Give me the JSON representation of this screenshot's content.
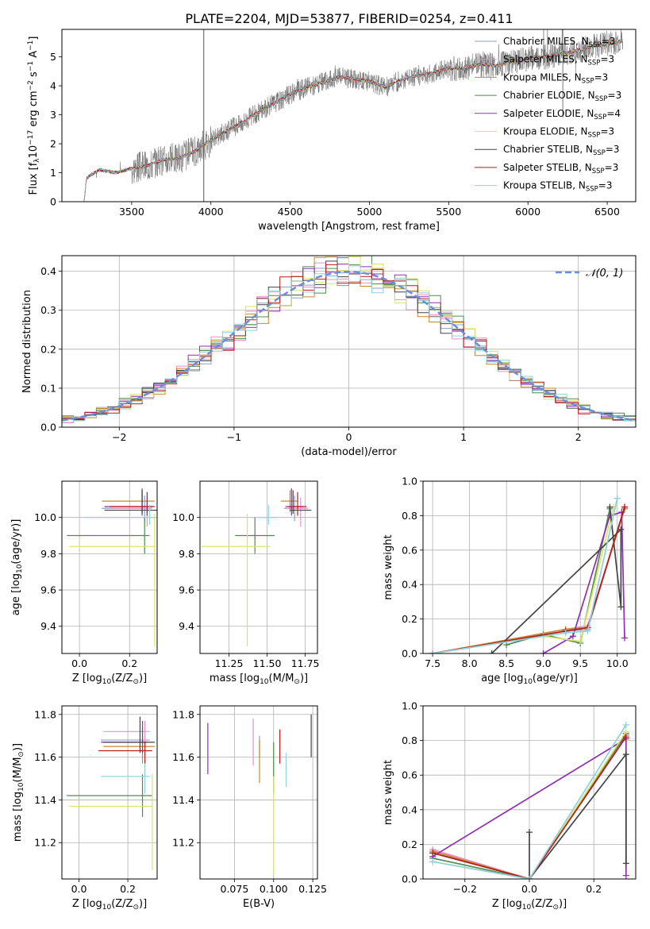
{
  "figure": {
    "title": "PLATE=2204, MJD=53877, FIBERID=0254, z=0.411"
  },
  "colors": {
    "Chabrier MILES": "#8c9ed0",
    "Salpeter MILES": "#e98fc8",
    "Kroupa MILES": "#c8882c",
    "Chabrier ELODIE": "#4f8a4f",
    "Salpeter ELODIE": "#8e2fb0",
    "Kroupa ELODIE": "#d9e36a",
    "Chabrier STELIB": "#444444",
    "Salpeter STELIB": "#b51c1c",
    "Kroupa STELIB": "#8fd0dc",
    "data": "#707070",
    "gaussian": "#6a8fd9"
  },
  "chart_data": [
    {
      "id": "spectrum",
      "type": "line",
      "xlabel": "wavelength [Angstrom, rest frame]",
      "ylabel": "Flux [f_λ 10^-17 erg cm^-2 s^-1 A^-1]",
      "xlim": [
        3060,
        6680
      ],
      "ylim": [
        0,
        5.95
      ],
      "xticks": [
        3500,
        4000,
        4500,
        5000,
        5500,
        6000,
        6500
      ],
      "yticks": [
        0,
        1,
        2,
        3,
        4,
        5
      ],
      "grid": false,
      "legend_position": "upper-right",
      "legend": [
        {
          "label": "Chabrier MILES",
          "sub": "SSP",
          "n": "3"
        },
        {
          "label": "Salpeter MILES",
          "sub": "SSP",
          "n": "3"
        },
        {
          "label": "Kroupa MILES",
          "sub": "SSP",
          "n": "3"
        },
        {
          "label": "Chabrier ELODIE",
          "sub": "SSP",
          "n": "3"
        },
        {
          "label": "Salpeter ELODIE",
          "sub": "SSP",
          "n": "4"
        },
        {
          "label": "Kroupa ELODIE",
          "sub": "SSP",
          "n": "3"
        },
        {
          "label": "Chabrier STELIB",
          "sub": "SSP",
          "n": "3"
        },
        {
          "label": "Salpeter STELIB",
          "sub": "SSP",
          "n": "3"
        },
        {
          "label": "Kroupa STELIB",
          "sub": "SSP",
          "n": "3"
        }
      ],
      "model_curve": {
        "x": [
          3200,
          3215,
          3250,
          3300,
          3400,
          3500,
          3600,
          3700,
          3800,
          3900,
          3950,
          4000,
          4100,
          4200,
          4300,
          4400,
          4500,
          4600,
          4700,
          4800,
          4900,
          5000,
          5100,
          5200,
          5300,
          5400,
          5500,
          5600,
          5700,
          5800,
          5900,
          6000,
          6100,
          6200,
          6300,
          6400,
          6500,
          6600
        ],
        "y": [
          0,
          0.8,
          0.95,
          1.1,
          1.0,
          1.15,
          1.25,
          1.45,
          1.5,
          1.75,
          1.95,
          2.1,
          2.45,
          2.75,
          3.1,
          3.4,
          3.7,
          3.95,
          4.1,
          4.3,
          4.25,
          4.15,
          3.95,
          4.2,
          4.35,
          4.45,
          4.6,
          4.6,
          4.75,
          4.7,
          4.85,
          4.95,
          5.0,
          5.1,
          5.2,
          5.35,
          5.45,
          5.55
        ]
      }
    },
    {
      "id": "residuals",
      "type": "histogram",
      "xlabel": "(data-model)/error",
      "ylabel": "Normed distribution",
      "xlim": [
        -2.5,
        2.5
      ],
      "ylim": [
        0,
        0.44
      ],
      "xticks": [
        -2,
        -1,
        0,
        1,
        2
      ],
      "yticks": [
        0.0,
        0.1,
        0.2,
        0.3,
        0.4
      ],
      "grid": true,
      "legend_position": "upper-right",
      "legend": [
        {
          "label": "𝒩(0, 1)"
        }
      ],
      "gaussian": {
        "mu": 0,
        "sigma": 1
      }
    },
    {
      "id": "age-vs-Z",
      "type": "scatter",
      "xlabel": "Z [log₁₀(Z/Z⊙)]",
      "ylabel": "age  [log₁₀(age/yr)]",
      "xlim": [
        -0.07,
        0.31
      ],
      "ylim": [
        9.25,
        10.2
      ],
      "xticks": [
        0.0,
        0.2
      ],
      "yticks": [
        9.4,
        9.6,
        9.8,
        10.0
      ],
      "grid": true,
      "points": [
        {
          "model": "Chabrier MILES",
          "x": 0.26,
          "xerr": [
            0.17,
            0.03
          ],
          "y": 10.05,
          "yerr": [
            0.07,
            0.07
          ]
        },
        {
          "model": "Salpeter MILES",
          "x": 0.27,
          "xerr": [
            0.13,
            0.02
          ],
          "y": 10.05,
          "yerr": [
            0.1,
            0.06
          ]
        },
        {
          "model": "Kroupa MILES",
          "x": 0.25,
          "xerr": [
            0.16,
            0.05
          ],
          "y": 10.09,
          "yerr": [
            0.06,
            0.06
          ]
        },
        {
          "model": "Chabrier ELODIE",
          "x": 0.26,
          "xerr": [
            0.31,
            0.02
          ],
          "y": 9.9,
          "yerr": [
            0.1,
            0.1
          ]
        },
        {
          "model": "Salpeter ELODIE",
          "x": 0.25,
          "xerr": [
            0.15,
            0.04
          ],
          "y": 10.06,
          "yerr": [
            0.05,
            0.1
          ]
        },
        {
          "model": "Kroupa ELODIE",
          "x": 0.3,
          "xerr": [
            0.34,
            0.0
          ],
          "y": 9.84,
          "yerr": [
            0.55,
            0.18
          ]
        },
        {
          "model": "Chabrier STELIB",
          "x": 0.25,
          "xerr": [
            0.15,
            0.06
          ],
          "y": 10.04,
          "yerr": [
            0.02,
            0.11
          ]
        },
        {
          "model": "Salpeter STELIB",
          "x": 0.27,
          "xerr": [
            0.15,
            0.03
          ],
          "y": 10.06,
          "yerr": [
            0.05,
            0.08
          ]
        },
        {
          "model": "Kroupa STELIB",
          "x": 0.28,
          "xerr": [
            0.26,
            0.02
          ],
          "y": 10.0,
          "yerr": [
            0.04,
            0.07
          ]
        }
      ]
    },
    {
      "id": "age-vs-mass",
      "type": "scatter",
      "xlabel": "mass [log₁₀(M/M⊙)]",
      "ylabel": "",
      "xlim": [
        11.06,
        11.83
      ],
      "ylim": [
        9.25,
        10.2
      ],
      "xticks": [
        11.25,
        11.5,
        11.75
      ],
      "yticks": [
        9.4,
        9.6,
        9.8,
        10.0
      ],
      "grid": true,
      "points": [
        {
          "model": "Chabrier MILES",
          "x": 11.68,
          "xerr": [
            0.07,
            0.07
          ],
          "y": 10.05,
          "yerr": [
            0.07,
            0.07
          ]
        },
        {
          "model": "Salpeter MILES",
          "x": 11.72,
          "xerr": [
            0.1,
            0.05
          ],
          "y": 10.05,
          "yerr": [
            0.1,
            0.06
          ]
        },
        {
          "model": "Kroupa MILES",
          "x": 11.65,
          "xerr": [
            0.06,
            0.05
          ],
          "y": 10.09,
          "yerr": [
            0.06,
            0.06
          ]
        },
        {
          "model": "Chabrier ELODIE",
          "x": 11.42,
          "xerr": [
            0.13,
            0.13
          ],
          "y": 9.9,
          "yerr": [
            0.1,
            0.1
          ]
        },
        {
          "model": "Salpeter ELODIE",
          "x": 11.66,
          "xerr": [
            0.04,
            0.1
          ],
          "y": 10.06,
          "yerr": [
            0.05,
            0.1
          ]
        },
        {
          "model": "Kroupa ELODIE",
          "x": 11.37,
          "xerr": [
            0.3,
            0.15
          ],
          "y": 9.84,
          "yerr": [
            0.55,
            0.18
          ]
        },
        {
          "model": "Chabrier STELIB",
          "x": 11.67,
          "xerr": [
            0.02,
            0.12
          ],
          "y": 10.04,
          "yerr": [
            0.02,
            0.11
          ]
        },
        {
          "model": "Salpeter STELIB",
          "x": 11.7,
          "xerr": [
            0.06,
            0.04
          ],
          "y": 10.06,
          "yerr": [
            0.05,
            0.08
          ]
        },
        {
          "model": "Kroupa STELIB",
          "x": 11.51,
          "xerr": [
            0.08,
            0.06
          ],
          "y": 10.0,
          "yerr": [
            0.04,
            0.07
          ]
        }
      ]
    },
    {
      "id": "massweight-vs-age",
      "type": "line",
      "xlabel": "age  [log₁₀(age/yr)]",
      "ylabel": "mass weight",
      "xlim": [
        7.37,
        10.25
      ],
      "ylim": [
        0,
        1.0
      ],
      "xticks": [
        7.5,
        8.0,
        8.5,
        9.0,
        9.5,
        10.0
      ],
      "yticks": [
        0.0,
        0.2,
        0.4,
        0.6,
        0.8,
        1.0
      ],
      "grid": true,
      "series": [
        {
          "model": "Chabrier MILES",
          "x": [
            7.5,
            9.3,
            9.6,
            10.1
          ],
          "y": [
            0.0,
            0.13,
            0.14,
            0.85
          ]
        },
        {
          "model": "Salpeter MILES",
          "x": [
            7.5,
            9.3,
            9.6,
            10.1
          ],
          "y": [
            0.0,
            0.14,
            0.16,
            0.84
          ]
        },
        {
          "model": "Kroupa MILES",
          "x": [
            7.5,
            9.3,
            9.6,
            10.1
          ],
          "y": [
            0.0,
            0.14,
            0.15,
            0.84
          ]
        },
        {
          "model": "Chabrier ELODIE",
          "x": [
            8.5,
            9.0,
            9.5,
            9.9
          ],
          "y": [
            0.05,
            0.11,
            0.06,
            0.84
          ]
        },
        {
          "model": "Salpeter ELODIE",
          "x": [
            9.0,
            9.4,
            9.9,
            10.06,
            10.1
          ],
          "y": [
            0.0,
            0.1,
            0.8,
            0.82,
            0.09
          ]
        },
        {
          "model": "Kroupa ELODIE",
          "x": [
            9.0,
            9.5,
            9.95
          ],
          "y": [
            0.1,
            0.07,
            0.85
          ]
        },
        {
          "model": "Chabrier STELIB",
          "x": [
            8.3,
            10.05,
            10.05,
            9.9
          ],
          "y": [
            0.0,
            0.72,
            0.27,
            0.85
          ]
        },
        {
          "model": "Salpeter STELIB",
          "x": [
            7.5,
            9.3,
            9.6,
            10.1
          ],
          "y": [
            0.0,
            0.13,
            0.15,
            0.85
          ]
        },
        {
          "model": "Kroupa STELIB",
          "x": [
            7.5,
            9.3,
            9.6,
            10.0
          ],
          "y": [
            0.0,
            0.12,
            0.13,
            0.9
          ]
        }
      ]
    },
    {
      "id": "mass-vs-Z",
      "type": "scatter",
      "xlabel": "Z [log₁₀(Z/Z⊙)]",
      "ylabel": "mass [log₁₀(M/M⊙)]",
      "xlim": [
        -0.07,
        0.32
      ],
      "ylim": [
        11.03,
        11.84
      ],
      "xticks": [
        0.0,
        0.2
      ],
      "yticks": [
        11.2,
        11.4,
        11.6,
        11.8
      ],
      "grid": true,
      "points": [
        {
          "model": "Chabrier MILES",
          "x": 0.26,
          "xerr": [
            0.17,
            0.03
          ],
          "y": 11.68,
          "yerr": [
            0.06,
            0.06
          ]
        },
        {
          "model": "Salpeter MILES",
          "x": 0.27,
          "xerr": [
            0.17,
            0.02
          ],
          "y": 11.72,
          "yerr": [
            0.08,
            0.05
          ]
        },
        {
          "model": "Kroupa MILES",
          "x": 0.26,
          "xerr": [
            0.16,
            0.05
          ],
          "y": 11.65,
          "yerr": [
            0.08,
            0.05
          ]
        },
        {
          "model": "Chabrier ELODIE",
          "x": 0.26,
          "xerr": [
            0.31,
            0.04
          ],
          "y": 11.42,
          "yerr": [
            0.1,
            0.1
          ]
        },
        {
          "model": "Salpeter ELODIE",
          "x": 0.26,
          "xerr": [
            0.17,
            0.02
          ],
          "y": 11.67,
          "yerr": [
            0.05,
            0.1
          ]
        },
        {
          "model": "Kroupa ELODIE",
          "x": 0.3,
          "xerr": [
            0.34,
            0.0
          ],
          "y": 11.37,
          "yerr": [
            0.3,
            0.15
          ]
        },
        {
          "model": "Chabrier STELIB",
          "x": 0.25,
          "xerr": [
            0.15,
            0.06
          ],
          "y": 11.67,
          "yerr": [
            0.05,
            0.12
          ]
        },
        {
          "model": "Salpeter STELIB",
          "x": 0.27,
          "xerr": [
            0.19,
            0.03
          ],
          "y": 11.63,
          "yerr": [
            0.06,
            0.04
          ]
        },
        {
          "model": "Kroupa STELIB",
          "x": 0.27,
          "xerr": [
            0.18,
            0.02
          ],
          "y": 11.51,
          "yerr": [
            0.08,
            0.06
          ]
        }
      ]
    },
    {
      "id": "mass-vs-EBV",
      "type": "scatter",
      "xlabel": "E(B-V)",
      "ylabel": "",
      "xlim": [
        0.053,
        0.128
      ],
      "ylim": [
        11.03,
        11.84
      ],
      "xticks": [
        0.075,
        0.1,
        0.125
      ],
      "yticks": [
        11.2,
        11.4,
        11.6,
        11.8
      ],
      "grid": true,
      "points": [
        {
          "model": "Chabrier MILES",
          "x": 0.091,
          "y": 11.66,
          "yerr": [
            0.06,
            0.04
          ]
        },
        {
          "model": "Salpeter MILES",
          "x": 0.087,
          "y": 11.67,
          "yerr": [
            0.11,
            0.11
          ]
        },
        {
          "model": "Kroupa MILES",
          "x": 0.091,
          "y": 11.58,
          "yerr": [
            0.1,
            0.1
          ]
        },
        {
          "model": "Chabrier ELODIE",
          "x": 0.1,
          "y": 11.55,
          "yerr": [
            0.12,
            0.12
          ]
        },
        {
          "model": "Salpeter ELODIE",
          "x": 0.058,
          "y": 11.64,
          "yerr": [
            0.12,
            0.12
          ]
        },
        {
          "model": "Kroupa ELODIE",
          "x": 0.1,
          "y": 11.28,
          "yerr": [
            0.23,
            0.23
          ]
        },
        {
          "model": "Chabrier STELIB",
          "x": 0.124,
          "y": 11.7,
          "yerr": [
            0.1,
            0.1
          ]
        },
        {
          "model": "Salpeter STELIB",
          "x": 0.104,
          "y": 11.65,
          "yerr": [
            0.08,
            0.08
          ]
        },
        {
          "model": "Kroupa STELIB",
          "x": 0.108,
          "y": 11.54,
          "yerr": [
            0.08,
            0.08
          ]
        }
      ]
    },
    {
      "id": "massweight-vs-Z",
      "type": "line",
      "xlabel": "Z [log₁₀(Z/Z⊙)]",
      "ylabel": "mass weight",
      "xlim": [
        -0.33,
        0.33
      ],
      "ylim": [
        0,
        1.0
      ],
      "xticks": [
        -0.2,
        0.0,
        0.2
      ],
      "yticks": [
        0.0,
        0.2,
        0.4,
        0.6,
        0.8,
        1.0
      ],
      "grid": true,
      "series": [
        {
          "model": "Chabrier MILES",
          "x": [
            -0.3,
            0.0,
            0.3
          ],
          "y": [
            0.15,
            0.0,
            0.83
          ]
        },
        {
          "model": "Salpeter MILES",
          "x": [
            -0.3,
            0.0,
            0.3
          ],
          "y": [
            0.17,
            0.0,
            0.84
          ]
        },
        {
          "model": "Kroupa MILES",
          "x": [
            -0.3,
            0.0,
            0.3
          ],
          "y": [
            0.16,
            0.0,
            0.84
          ]
        },
        {
          "model": "Chabrier ELODIE",
          "x": [
            -0.3,
            0.0,
            0.3
          ],
          "y": [
            0.12,
            0.0,
            0.84
          ]
        },
        {
          "model": "Salpeter ELODIE",
          "x": [
            -0.3,
            0.3,
            0.3
          ],
          "y": [
            0.13,
            0.81,
            0.02
          ]
        },
        {
          "model": "Kroupa ELODIE",
          "x": [
            -0.3,
            0.0,
            0.3
          ],
          "y": [
            0.1,
            0.0,
            0.85
          ]
        },
        {
          "model": "Chabrier STELIB",
          "x": [
            0.0,
            0.0,
            0.3,
            0.3
          ],
          "y": [
            0.27,
            0.0,
            0.72,
            0.09
          ]
        },
        {
          "model": "Salpeter STELIB",
          "x": [
            -0.3,
            0.0,
            0.3
          ],
          "y": [
            0.15,
            0.0,
            0.82
          ]
        },
        {
          "model": "Kroupa STELIB",
          "x": [
            -0.3,
            0.0,
            0.3
          ],
          "y": [
            0.1,
            0.0,
            0.89
          ]
        }
      ]
    }
  ]
}
